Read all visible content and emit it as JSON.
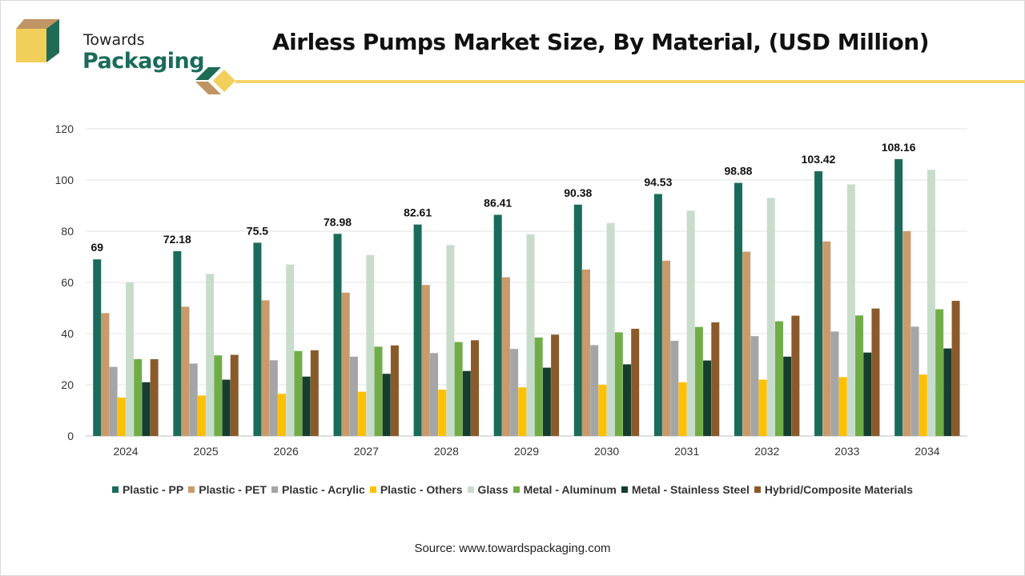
{
  "brand": {
    "line1": "Towards",
    "line2": "Packaging"
  },
  "title": "Airless Pumps Market Size, By Material, (USD Million)",
  "source": "Source: www.towardspackaging.com",
  "chart_data": {
    "type": "bar",
    "title": "Airless Pumps Market Size, By Material, (USD Million)",
    "xlabel": "",
    "ylabel": "",
    "ylim": [
      0,
      120
    ],
    "yticks": [
      0,
      20,
      40,
      60,
      80,
      100,
      120
    ],
    "grid": true,
    "legend_position": "bottom",
    "categories": [
      "2024",
      "2025",
      "2026",
      "2027",
      "2028",
      "2029",
      "2030",
      "2031",
      "2032",
      "2033",
      "2034"
    ],
    "series": [
      {
        "name": "Plastic - PP",
        "color": "#1b6b5b",
        "values": [
          69,
          72.18,
          75.5,
          78.98,
          82.61,
          86.41,
          90.38,
          94.53,
          98.88,
          103.42,
          108.16
        ],
        "labels": [
          "69",
          "72.18",
          "75.5",
          "78.98",
          "82.61",
          "86.41",
          "90.38",
          "94.53",
          "98.88",
          "103.42",
          "108.16"
        ]
      },
      {
        "name": "Plastic - PET",
        "color": "#c99a6b",
        "values": [
          48,
          50.5,
          53,
          56,
          59,
          62,
          65,
          68.5,
          72,
          76,
          80
        ]
      },
      {
        "name": "Plastic - Acrylic",
        "color": "#a5a5a5",
        "values": [
          27,
          28.3,
          29.6,
          31,
          32.4,
          34,
          35.5,
          37.2,
          39,
          40.8,
          42.7
        ]
      },
      {
        "name": "Plastic - Others",
        "color": "#ffc000",
        "values": [
          15,
          15.8,
          16.5,
          17.3,
          18.1,
          19,
          20,
          21,
          22,
          23,
          24
        ]
      },
      {
        "name": "Glass",
        "color": "#c8dccb",
        "values": [
          60,
          63.3,
          67,
          70.7,
          74.6,
          78.8,
          83.2,
          88,
          93,
          98.3,
          104
        ]
      },
      {
        "name": "Metal - Aluminum",
        "color": "#70ad47",
        "values": [
          30,
          31.5,
          33.2,
          34.9,
          36.7,
          38.5,
          40.5,
          42.6,
          44.8,
          47.1,
          49.5
        ]
      },
      {
        "name": "Metal - Stainless Steel",
        "color": "#163d2e",
        "values": [
          21,
          22,
          23.2,
          24.3,
          25.4,
          26.7,
          28,
          29.5,
          31,
          32.6,
          34.2
        ]
      },
      {
        "name": "Hybrid/Composite Materials",
        "color": "#8b5a2b",
        "values": [
          30,
          31.7,
          33.5,
          35.4,
          37.4,
          39.6,
          41.9,
          44.4,
          47,
          49.8,
          52.8
        ]
      }
    ]
  }
}
